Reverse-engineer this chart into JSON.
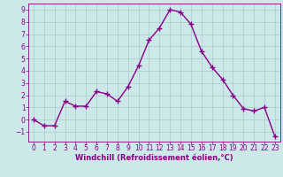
{
  "x": [
    0,
    1,
    2,
    3,
    4,
    5,
    6,
    7,
    8,
    9,
    10,
    11,
    12,
    13,
    14,
    15,
    16,
    17,
    18,
    19,
    20,
    21,
    22,
    23
  ],
  "y": [
    0,
    -0.5,
    -0.5,
    1.5,
    1.1,
    1.1,
    2.3,
    2.1,
    1.5,
    2.7,
    4.4,
    6.5,
    7.5,
    9.0,
    8.8,
    7.8,
    5.6,
    4.3,
    3.3,
    2.0,
    0.9,
    0.7,
    1.0,
    -1.4
  ],
  "line_color": "#880088",
  "marker": "+",
  "marker_size": 4,
  "bg_color": "#cce8e8",
  "grid_color": "#aacccc",
  "xlabel": "Windchill (Refroidissement éolien,°C)",
  "xlim": [
    -0.5,
    23.5
  ],
  "ylim": [
    -1.8,
    9.5
  ],
  "yticks": [
    -1,
    0,
    1,
    2,
    3,
    4,
    5,
    6,
    7,
    8,
    9
  ],
  "xticks": [
    0,
    1,
    2,
    3,
    4,
    5,
    6,
    7,
    8,
    9,
    10,
    11,
    12,
    13,
    14,
    15,
    16,
    17,
    18,
    19,
    20,
    21,
    22,
    23
  ],
  "label_color": "#880088",
  "tick_color": "#880088",
  "spine_color": "#880088",
  "tick_fontsize": 5.5,
  "xlabel_fontsize": 6,
  "linewidth": 1.0
}
